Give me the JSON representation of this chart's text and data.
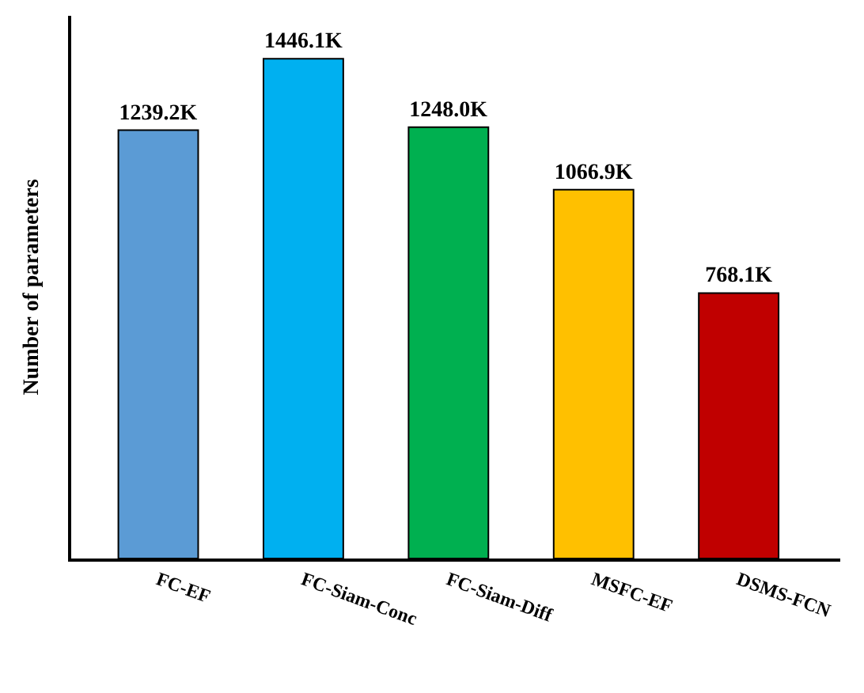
{
  "chart_data": {
    "type": "bar",
    "ylabel": "Number of parameters",
    "categories": [
      "FC-EF",
      "FC-Siam-Conc",
      "FC-Siam-Diff",
      "MSFC-EF",
      "DSMS-FCN"
    ],
    "values": [
      1239.2,
      1446.1,
      1248.0,
      1066.9,
      768.1
    ],
    "colors": [
      "#5b9bd5",
      "#00b0f0",
      "#00b050",
      "#ffc000",
      "#c00000"
    ],
    "value_labels": [
      "1239.2K",
      "1446.1K",
      "1248.0K",
      "1066.9K",
      "768.1K"
    ],
    "ylim": [
      0,
      1570
    ],
    "legend": false
  }
}
